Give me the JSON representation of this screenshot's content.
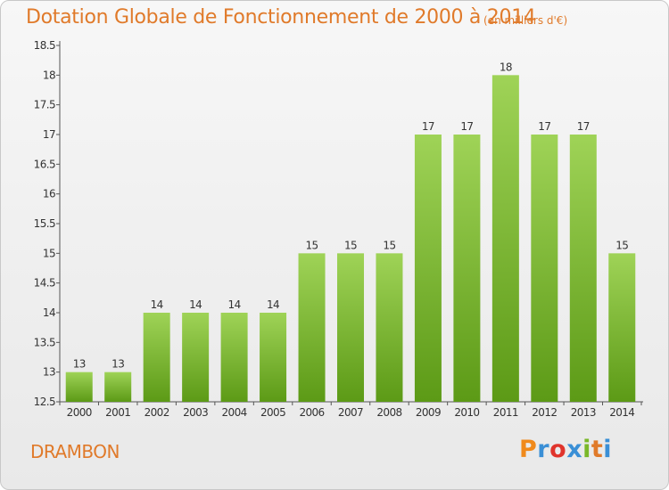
{
  "header": {
    "title": "Dotation Globale de Fonctionnement de 2000 à 2014",
    "subtitle": "(en milliers d'€)"
  },
  "footer": {
    "place": "DRAMBON",
    "brand": "Proxiti"
  },
  "colors": {
    "bar_light": "#9fd357",
    "bar_dark": "#5c9a16",
    "text_accent": "#e07a2a",
    "brand": [
      "#f08a1c",
      "#3a8fd6",
      "#e0342c",
      "#3a8fd6",
      "#7ab829",
      "#e07a2a",
      "#3a8fd6"
    ]
  },
  "chart_data": {
    "type": "bar",
    "categories": [
      "2000",
      "2001",
      "2002",
      "2003",
      "2004",
      "2005",
      "2006",
      "2007",
      "2008",
      "2009",
      "2010",
      "2011",
      "2012",
      "2013",
      "2014"
    ],
    "values": [
      13,
      13,
      14,
      14,
      14,
      14,
      15,
      15,
      15,
      17,
      17,
      18,
      17,
      17,
      15
    ],
    "ylim": [
      12.5,
      18.5
    ],
    "yticks": [
      12.5,
      13,
      13.5,
      14,
      14.5,
      15,
      15.5,
      16,
      16.5,
      17,
      17.5,
      18,
      18.5
    ],
    "grid": false
  }
}
